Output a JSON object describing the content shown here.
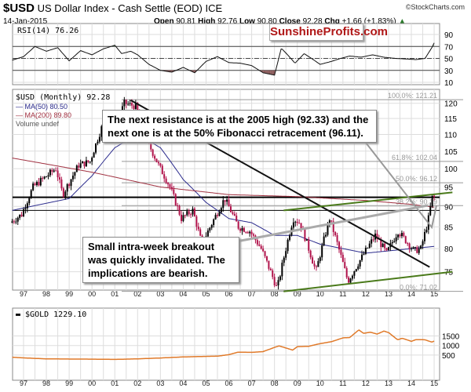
{
  "header": {
    "symbol": "$USD",
    "name": "US Dollar Index - Cash Settle (EOD) ICE",
    "source": "©StockCharts.com",
    "date": "14-Jan-2015",
    "open_label": "Open",
    "open": "90.81",
    "high_label": "High",
    "high": "92.76",
    "low_label": "Low",
    "low": "90.80",
    "close_label": "Close",
    "close": "92.28",
    "chg_label": "Chg",
    "chg": "+1.66 (+1.83%)"
  },
  "watermark": "SunshineProfits.com",
  "annotations": {
    "resistance": "The next resistance is at the 2005 high (92.33) and the next one is at the 50% Fibonacci retracement (96.11).",
    "breakout": "Small intra-week breakout was quickly invalidated. The implications are bearish."
  },
  "colors": {
    "up": "#000000",
    "down": "#b0124a",
    "ma50": "#2a2a8c",
    "ma200": "#a03040",
    "gold": "#e07a2a",
    "trend_green": "#4a7a1a",
    "rsi_fill": "#8a5a5a"
  },
  "chart_data": [
    {
      "type": "line",
      "panel": "rsi",
      "legend": "RSI(14) 76.26",
      "ylim": [
        0,
        100
      ],
      "yticks": [
        10,
        30,
        50,
        70,
        90
      ],
      "reference_lines": [
        30,
        50,
        70
      ],
      "x": [
        1996.5,
        1997,
        1997.5,
        1998,
        1998.5,
        1999,
        1999.5,
        2000,
        2000.5,
        2001,
        2001.3,
        2001.7,
        2002,
        2002.5,
        2003,
        2003.5,
        2004,
        2004.5,
        2005,
        2005.5,
        2006,
        2006.5,
        2007,
        2007.5,
        2008,
        2008.3,
        2008.6,
        2008.9,
        2009.3,
        2009.7,
        2010,
        2010.5,
        2010.9,
        2011.3,
        2011.8,
        2012.3,
        2012.8,
        2013.3,
        2013.8,
        2014.2,
        2014.6,
        2014.9,
        2015
      ],
      "values": [
        47,
        53,
        70,
        62,
        68,
        46,
        63,
        56,
        66,
        72,
        58,
        62,
        56,
        40,
        30,
        27,
        35,
        26,
        45,
        53,
        43,
        42,
        38,
        26,
        22,
        67,
        55,
        42,
        58,
        48,
        40,
        45,
        50,
        54,
        52,
        56,
        52,
        50,
        49,
        48,
        50,
        68,
        76
      ]
    },
    {
      "type": "candlestick",
      "panel": "price",
      "legend": "$USD (Monthly) 92.28",
      "scale": "log",
      "ylim": [
        70,
        122
      ],
      "yticks": [
        75,
        80,
        85,
        90,
        95,
        100,
        105,
        110,
        115,
        120
      ],
      "x": [
        1996.5,
        1997,
        1997.5,
        1998.5,
        1998.8,
        1999.5,
        2000,
        2000.5,
        2001,
        2001.5,
        2002,
        2002.5,
        2003,
        2003.5,
        2004,
        2004.5,
        2004.9,
        2005.9,
        2006.5,
        2007,
        2007.5,
        2008.2,
        2008.9,
        2009.2,
        2009.9,
        2010.5,
        2011.3,
        2011.9,
        2012.5,
        2013,
        2013.5,
        2014.2,
        2014.5,
        2014.8,
        2015
      ],
      "close": [
        86,
        88,
        95,
        100,
        93,
        101,
        102,
        112,
        110,
        120,
        119,
        108,
        101,
        95,
        87,
        89,
        81,
        92,
        85,
        84,
        80,
        71.5,
        87,
        86,
        75,
        87,
        73,
        78,
        83,
        79,
        84,
        79.5,
        80,
        86,
        92.28
      ],
      "series": [
        {
          "name": "MA(50) 80.50",
          "x": [
            1996.5,
            1999,
            2000,
            2001,
            2002,
            2003,
            2004,
            2005,
            2006,
            2007,
            2008,
            2009,
            2010,
            2011,
            2012,
            2013,
            2014,
            2015
          ],
          "values": [
            89,
            92,
            98,
            106,
            110,
            106,
            97,
            91,
            87,
            86,
            83,
            83,
            81,
            80,
            79,
            79.5,
            80,
            80.5
          ]
        },
        {
          "name": "MA(200) 89.80",
          "x": [
            1996.5,
            2000,
            2003,
            2006,
            2009,
            2012,
            2014,
            2015
          ],
          "values": [
            103,
            99,
            95,
            93,
            92.5,
            91.5,
            90.5,
            89.8
          ]
        }
      ],
      "volume_label": "Volume undef",
      "fibonacci": [
        {
          "label": "100.0%: 121.21",
          "value": 121.21
        },
        {
          "label": "61.8%: 102.04",
          "value": 102.04
        },
        {
          "label": "50.0%: 96.12",
          "value": 96.12
        },
        {
          "label": "38.2%: 90.19",
          "value": 90.19
        },
        {
          "label": "0.0%: 71.02",
          "value": 71.02
        }
      ],
      "horizontal_lines": [
        92.33,
        89.0
      ],
      "trendlines": [
        {
          "color": "black",
          "from": [
            2001.7,
            121
          ],
          "to": [
            2014.8,
            76
          ]
        },
        {
          "color": "green",
          "from": [
            2008.4,
            89
          ],
          "to": [
            2015.8,
            93.6
          ]
        },
        {
          "color": "green",
          "from": [
            2008.4,
            71
          ],
          "to": [
            2015.8,
            75
          ]
        }
      ]
    },
    {
      "type": "line",
      "panel": "gold",
      "legend": "$GOLD 1229.10",
      "ylim": [
        200,
        1900
      ],
      "yticks": [
        500,
        1000,
        1500
      ],
      "x": [
        1996.5,
        1997,
        1998,
        1999,
        2000,
        2001,
        2002,
        2003,
        2004,
        2005,
        2005.5,
        2006,
        2006.4,
        2007,
        2007.5,
        2008,
        2008.2,
        2008.8,
        2009,
        2009.5,
        2010,
        2010.5,
        2011,
        2011.3,
        2011.7,
        2011.9,
        2012.2,
        2012.5,
        2012.8,
        2013,
        2013.4,
        2013.6,
        2014,
        2014.2,
        2014.6,
        2014.9,
        2015
      ],
      "values": [
        385,
        350,
        300,
        290,
        285,
        270,
        300,
        345,
        400,
        430,
        440,
        520,
        650,
        640,
        680,
        900,
        980,
        760,
        940,
        960,
        1100,
        1200,
        1400,
        1420,
        1820,
        1640,
        1700,
        1600,
        1760,
        1680,
        1300,
        1380,
        1220,
        1310,
        1300,
        1180,
        1229
      ]
    }
  ],
  "xaxis": {
    "ticks": [
      "97",
      "98",
      "99",
      "00",
      "01",
      "02",
      "03",
      "04",
      "05",
      "06",
      "07",
      "08",
      "09",
      "10",
      "11",
      "12",
      "13",
      "14",
      "15"
    ],
    "tick_years": [
      1997,
      1998,
      1999,
      2000,
      2001,
      2002,
      2003,
      2004,
      2005,
      2006,
      2007,
      2008,
      2009,
      2010,
      2011,
      2012,
      2013,
      2014,
      2015
    ]
  }
}
